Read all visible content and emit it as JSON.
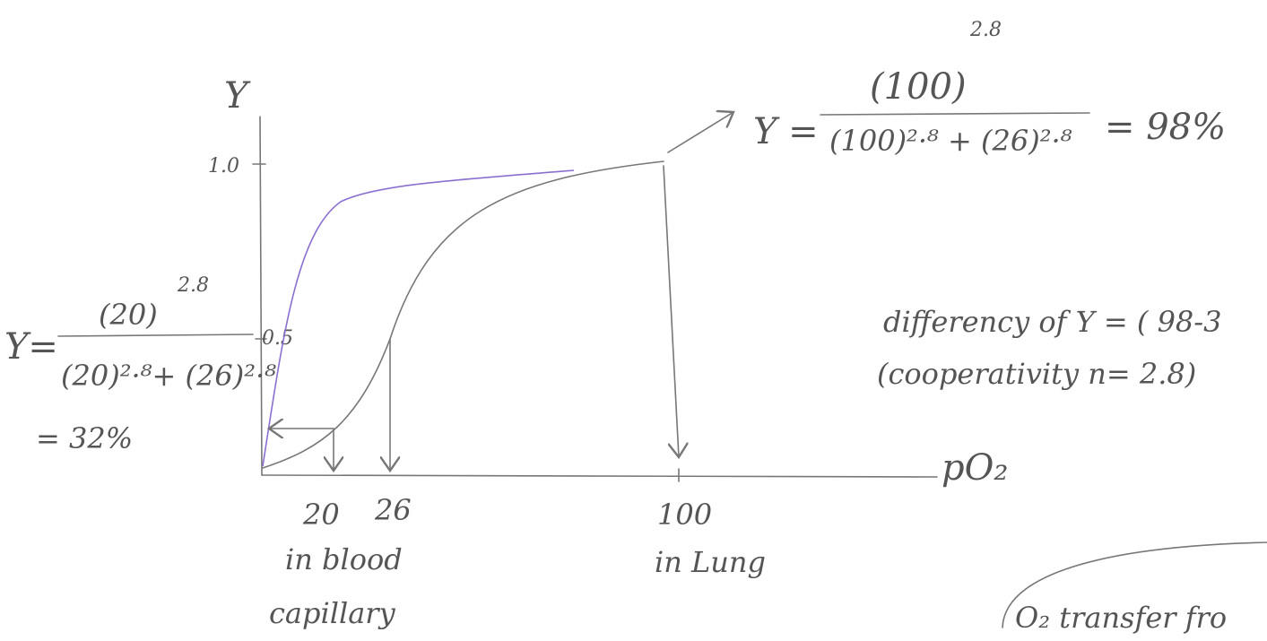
{
  "axis": {
    "y_label": "Y",
    "x_label": "pO₂",
    "y_ticks": [
      "1.0",
      "0.5"
    ],
    "x_ticks": [
      "20",
      "26",
      "100"
    ]
  },
  "notes": {
    "capillary_1": "in blood",
    "capillary_2": "capillary",
    "lung": "in Lung"
  },
  "equation_lung": {
    "lhs": "Y =",
    "numerator": "(100)",
    "numerator_exp": "2.8",
    "denominator": "(100)²·⁸ + (26)²·⁸",
    "result": "= 98%"
  },
  "equation_capillary": {
    "lhs": "Y=",
    "numerator": "(20)",
    "numerator_exp": "2.8",
    "denominator": "(20)²·⁸+ (26)²·⁸",
    "result": "= 32%"
  },
  "difference": "differency of Y = ( 98-3",
  "cooperativity": "(cooperativity n= 2.8)",
  "transfer": "O₂ transfer fro"
}
